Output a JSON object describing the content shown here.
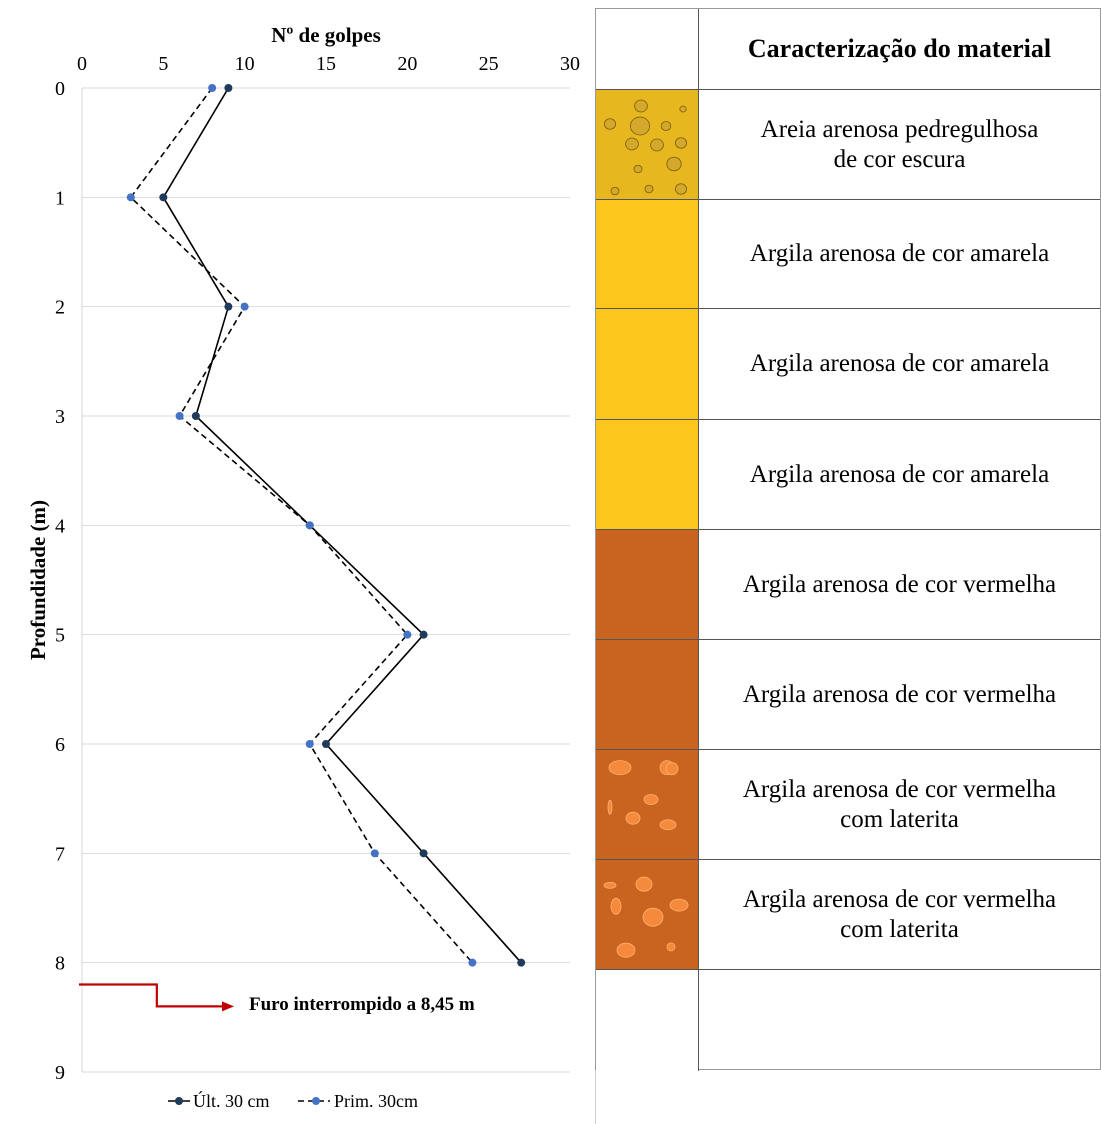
{
  "chart_data": {
    "type": "line",
    "title": "Nº de golpes",
    "xlabel": "Nº de golpes",
    "ylabel": "Profundidade (m)",
    "xlim": [
      0,
      30
    ],
    "ylim": [
      0,
      9
    ],
    "x_ticks": [
      "0",
      "5",
      "10",
      "15",
      "20",
      "25",
      "30"
    ],
    "y_ticks": [
      "0",
      "1",
      "2",
      "3",
      "4",
      "5",
      "6",
      "7",
      "8",
      "9"
    ],
    "grid": "horizontal",
    "legend_position": "bottom",
    "series": [
      {
        "name": "Últ. 30 cm",
        "style": "solid",
        "color": "#1f3a5a",
        "points": [
          [
            9,
            0
          ],
          [
            5,
            1
          ],
          [
            9,
            2
          ],
          [
            7,
            3
          ],
          [
            14,
            4
          ],
          [
            21,
            5
          ],
          [
            15,
            6
          ],
          [
            21,
            7
          ],
          [
            27,
            8
          ]
        ]
      },
      {
        "name": "Prim. 30cm",
        "style": "dashed",
        "color": "#4472c4",
        "points": [
          [
            8,
            0
          ],
          [
            3,
            1
          ],
          [
            10,
            2
          ],
          [
            6,
            3
          ],
          [
            14,
            4
          ],
          [
            20,
            5
          ],
          [
            14,
            6
          ],
          [
            18,
            7
          ],
          [
            24,
            8
          ]
        ]
      }
    ],
    "annotation": {
      "text": "Furo interrompido a 8,45 m",
      "color": "#c00000"
    }
  },
  "profile": {
    "header": "Caracterização do material",
    "layers": [
      {
        "description": "Areia arenosa pedregulhosa\nde cor escura",
        "fill": "#e6b71e",
        "pattern": "pebbles"
      },
      {
        "description": "Argila arenosa de cor amarela",
        "fill": "#fdc61c",
        "pattern": "none"
      },
      {
        "description": "Argila arenosa de cor amarela",
        "fill": "#fdc61c",
        "pattern": "none"
      },
      {
        "description": "Argila arenosa de cor amarela",
        "fill": "#fdc61c",
        "pattern": "none"
      },
      {
        "description": "Argila arenosa de cor vermelha",
        "fill": "#c96420",
        "pattern": "none"
      },
      {
        "description": "Argila arenosa de cor vermelha",
        "fill": "#c96420",
        "pattern": "none"
      },
      {
        "description": "Argila arenosa de cor vermelha\ncom laterita",
        "fill": "#c96420",
        "pattern": "laterite"
      },
      {
        "description": "Argila arenosa de cor vermelha\ncom laterita",
        "fill": "#c96420",
        "pattern": "laterite"
      },
      {
        "description": "",
        "fill": "#ffffff",
        "pattern": "none"
      }
    ]
  }
}
